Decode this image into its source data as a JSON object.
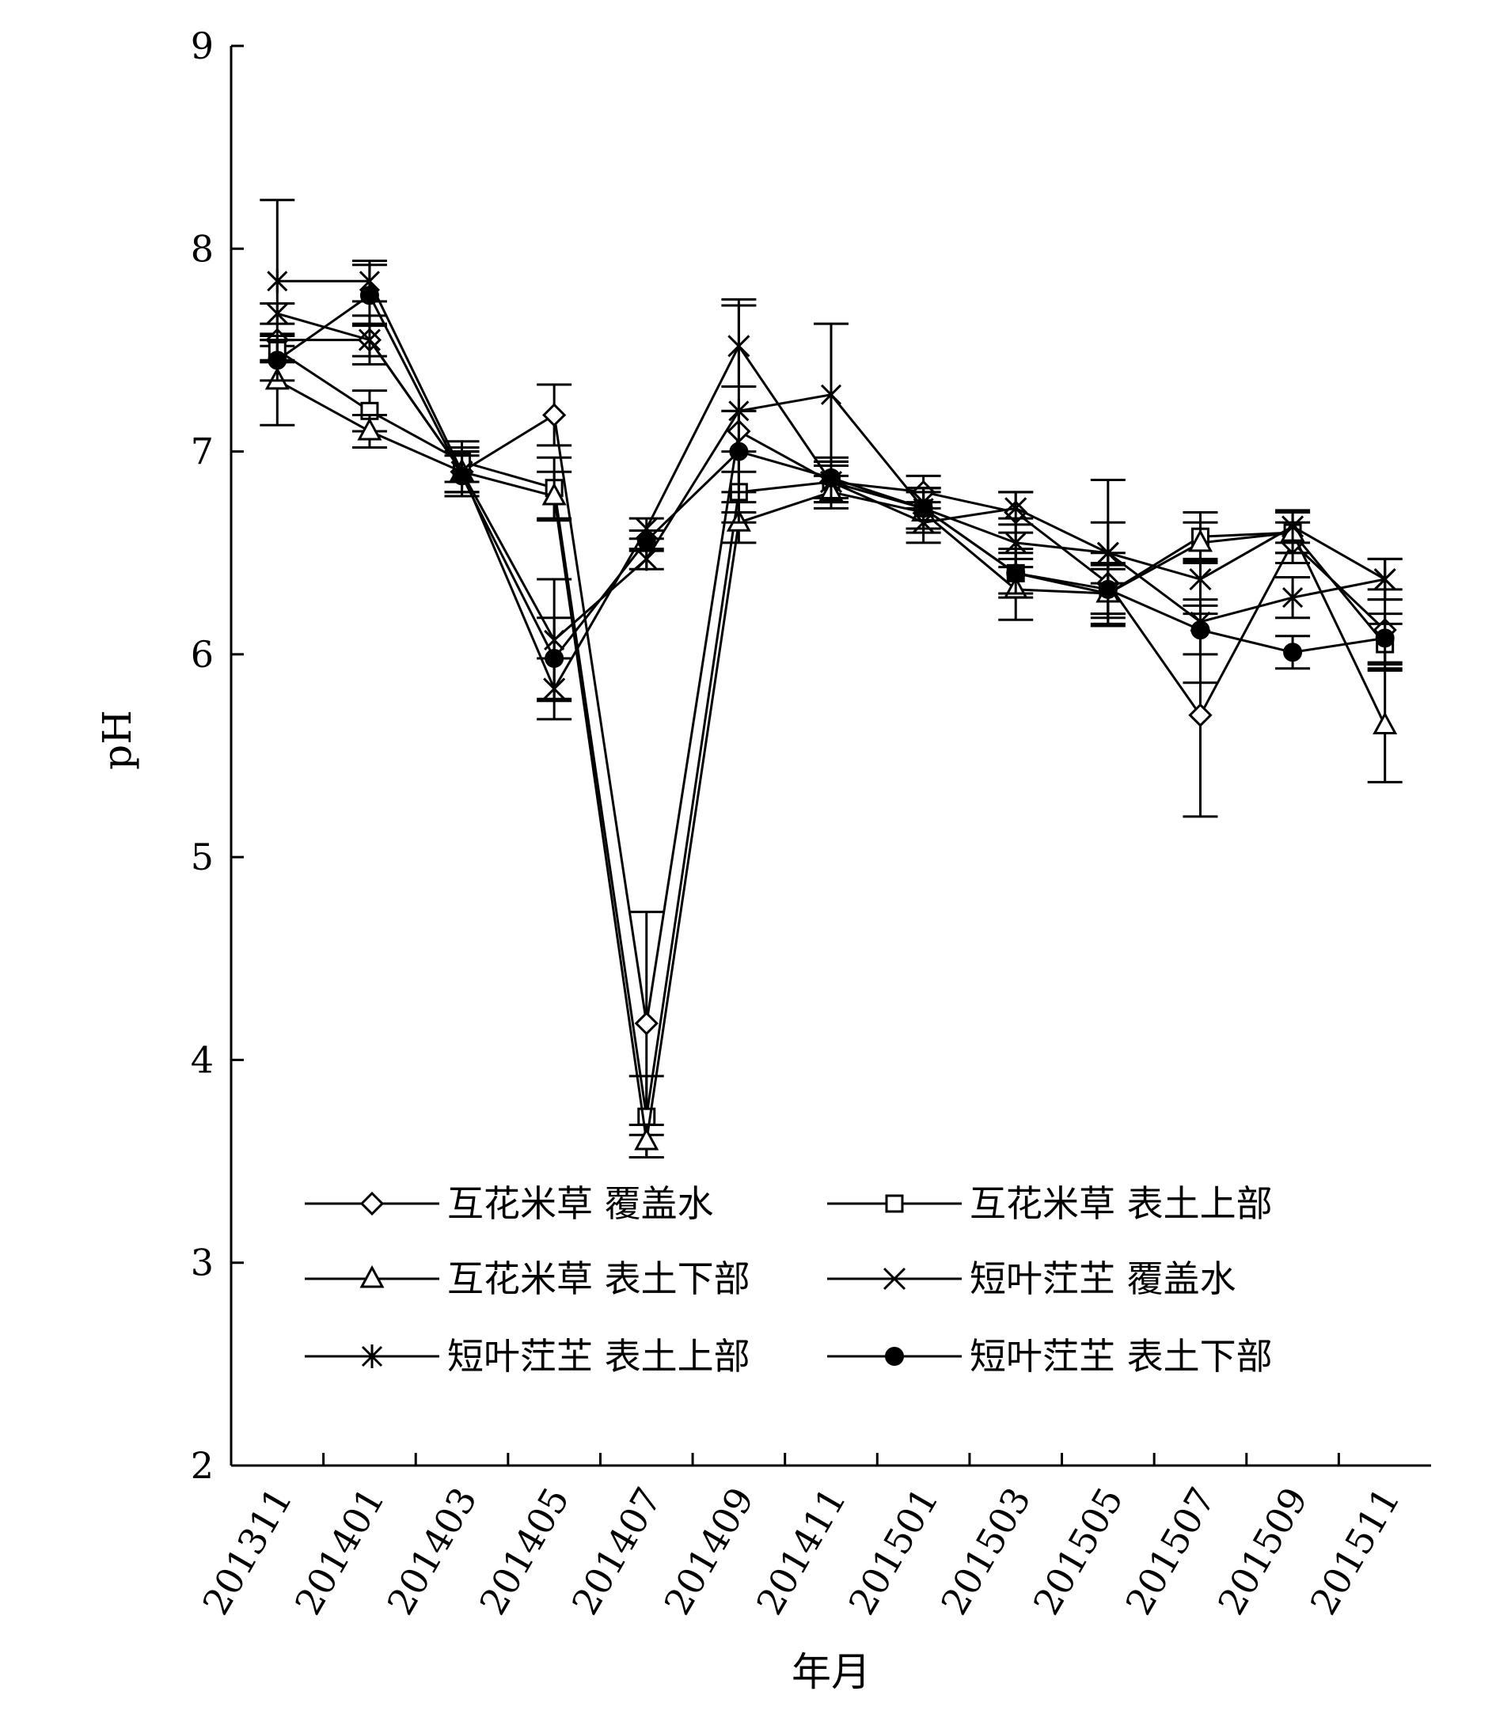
{
  "chart_data": {
    "type": "line",
    "xlabel": "年月",
    "ylabel": "pH",
    "ylim": [
      2,
      9
    ],
    "yticks": [
      2,
      3,
      4,
      5,
      6,
      7,
      8,
      9
    ],
    "categories": [
      "201311",
      "201401",
      "201403",
      "201405",
      "201407",
      "201409",
      "201411",
      "201501",
      "201503",
      "201505",
      "201507",
      "201509",
      "201511"
    ],
    "grid": false,
    "legend_position": "lower-center",
    "series": [
      {
        "name": "互花米草 覆盖水",
        "marker": "diamond",
        "values": [
          7.55,
          7.55,
          6.9,
          7.18,
          4.18,
          7.1,
          6.85,
          6.8,
          6.7,
          6.35,
          5.7,
          6.55,
          6.12
        ],
        "err": [
          0.03,
          0.08,
          0.12,
          0.15,
          0.55,
          0.1,
          0.1,
          0.08,
          0.1,
          0.15,
          0.5,
          0.1,
          0.2
        ]
      },
      {
        "name": "互花米草 表土上部",
        "marker": "square",
        "values": [
          7.5,
          7.2,
          6.95,
          6.82,
          3.72,
          6.8,
          6.85,
          6.72,
          6.4,
          6.3,
          6.58,
          6.6,
          6.05
        ],
        "err": [
          0.05,
          0.1,
          0.1,
          0.15,
          0.2,
          0.1,
          0.08,
          0.1,
          0.12,
          0.12,
          0.12,
          0.1,
          0.1
        ]
      },
      {
        "name": "互花米草 表土下部",
        "marker": "triangle",
        "values": [
          7.35,
          7.1,
          6.9,
          6.78,
          3.6,
          6.65,
          6.8,
          6.7,
          6.32,
          6.3,
          6.55,
          6.6,
          5.65
        ],
        "err": [
          0.22,
          0.08,
          0.1,
          0.12,
          0.08,
          0.1,
          0.08,
          0.1,
          0.15,
          0.15,
          0.1,
          0.1,
          0.28
        ]
      },
      {
        "name": "短叶茳芏 覆盖水",
        "marker": "x",
        "values": [
          7.68,
          7.55,
          6.9,
          5.83,
          6.62,
          7.52,
          6.85,
          6.65,
          6.72,
          6.5,
          6.37,
          6.63,
          6.37
        ],
        "err": [
          0.05,
          0.12,
          0.1,
          0.15,
          0.05,
          0.2,
          0.1,
          0.1,
          0.08,
          0.15,
          0.1,
          0.08,
          0.1
        ]
      },
      {
        "name": "短叶茳芏 表土上部",
        "marker": "asterisk",
        "values": [
          7.84,
          7.84,
          6.9,
          6.07,
          6.47,
          7.2,
          7.28,
          6.72,
          6.55,
          6.5,
          6.16,
          6.28,
          6.37
        ],
        "err": [
          0.4,
          0.1,
          0.1,
          0.3,
          0.05,
          0.55,
          0.35,
          0.1,
          0.12,
          0.36,
          0.3,
          0.1,
          0.1
        ]
      },
      {
        "name": "短叶茳芏 表土下部",
        "marker": "dot",
        "values": [
          7.45,
          7.77,
          6.88,
          5.98,
          6.56,
          7.0,
          6.87,
          6.72,
          6.4,
          6.32,
          6.12,
          6.01,
          6.08
        ],
        "err": [
          0.1,
          0.15,
          0.1,
          0.2,
          0.05,
          0.2,
          0.1,
          0.1,
          0.1,
          0.12,
          0.12,
          0.08,
          0.12
        ]
      }
    ]
  }
}
